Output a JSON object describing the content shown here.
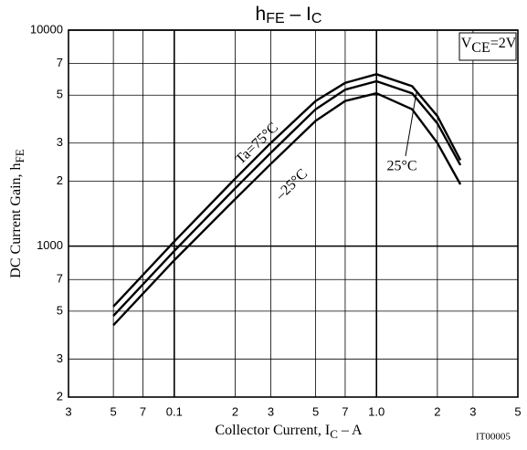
{
  "chart_data": {
    "type": "line",
    "title": {
      "parts": [
        "h",
        "FE",
        " – I",
        "C"
      ]
    },
    "x_label": {
      "parts": [
        "Collector Current, I",
        "C",
        " – A"
      ]
    },
    "y_label": {
      "parts": [
        "DC Current Gain, h",
        "FE"
      ]
    },
    "annotations": {
      "condition": {
        "parts": [
          "V",
          "CE",
          "=2V"
        ]
      },
      "code": "IT00005",
      "curve_labels": [
        "Ta=75°C",
        "25°C",
        "–25°C"
      ]
    },
    "x": [
      0.05,
      0.1,
      0.2,
      0.3,
      0.5,
      0.7,
      1.0,
      1.5,
      2.0,
      2.6
    ],
    "series": [
      {
        "name": "Ta=75°C",
        "color": "#000000",
        "values": [
          525,
          1050,
          2050,
          3000,
          4700,
          5700,
          6250,
          5500,
          4000,
          2500
        ]
      },
      {
        "name": "25°C",
        "color": "#000000",
        "values": [
          475,
          950,
          1850,
          2700,
          4300,
          5300,
          5800,
          5100,
          3700,
          2370
        ]
      },
      {
        "name": "–25°C",
        "color": "#000000",
        "values": [
          430,
          860,
          1650,
          2400,
          3800,
          4700,
          5100,
          4300,
          3000,
          1930
        ]
      }
    ],
    "xlim": [
      0.03,
      5
    ],
    "ylim": [
      200,
      10000
    ],
    "log_x": true,
    "log_y": true,
    "grid": true,
    "xticks": [
      {
        "value": 0.03,
        "label": "3"
      },
      {
        "value": 0.05,
        "label": "5"
      },
      {
        "value": 0.07,
        "label": "7"
      },
      0.1,
      {
        "value": 0.2,
        "label": "2"
      },
      {
        "value": 0.3,
        "label": "3"
      },
      {
        "value": 0.5,
        "label": "5"
      },
      {
        "value": 0.7,
        "label": "7"
      },
      {
        "value": 1,
        "label": "1.0"
      },
      2,
      3,
      5
    ],
    "yticks": [
      {
        "value": 200,
        "label": "2"
      },
      {
        "value": 300,
        "label": "3"
      },
      {
        "value": 500,
        "label": "5"
      },
      {
        "value": 700,
        "label": "7"
      },
      1000,
      {
        "value": 2000,
        "label": "2"
      },
      {
        "value": 3000,
        "label": "3"
      },
      {
        "value": 5000,
        "label": "5"
      },
      {
        "value": 7000,
        "label": "7"
      },
      10000
    ]
  }
}
